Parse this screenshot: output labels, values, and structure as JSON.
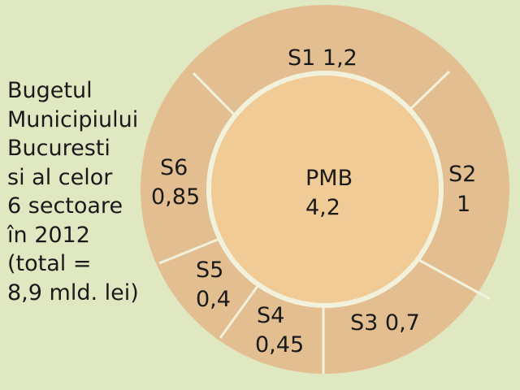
{
  "caption": [
    "Bugetul",
    "Municipiului",
    "Bucuresti",
    "si al celor",
    "6 sectoare",
    "în 2012",
    "(total =",
    "8,9 mld. lei)"
  ],
  "center": {
    "name": "PMB",
    "value": "4,2"
  },
  "sectors": [
    {
      "name": "S1",
      "value": "1,2",
      "label": "S1 1,2"
    },
    {
      "name": "S2",
      "value": "1",
      "label_lines": [
        "S2",
        "1"
      ]
    },
    {
      "name": "S3",
      "value": "0,7",
      "label": "S3 0,7"
    },
    {
      "name": "S4",
      "value": "0,45",
      "label_lines": [
        "S4",
        "0,45"
      ]
    },
    {
      "name": "S5",
      "value": "0,4",
      "label_lines": [
        "S5",
        "0,4"
      ]
    },
    {
      "name": "S6",
      "value": "0,85",
      "label_lines": [
        "S6",
        "0,85"
      ]
    }
  ],
  "colors": {
    "background": "#dfe8c1",
    "ring": "#e2be90",
    "center": "#f0cb95",
    "divider": "#f2f2dc",
    "text": "#1a1a1a"
  }
}
